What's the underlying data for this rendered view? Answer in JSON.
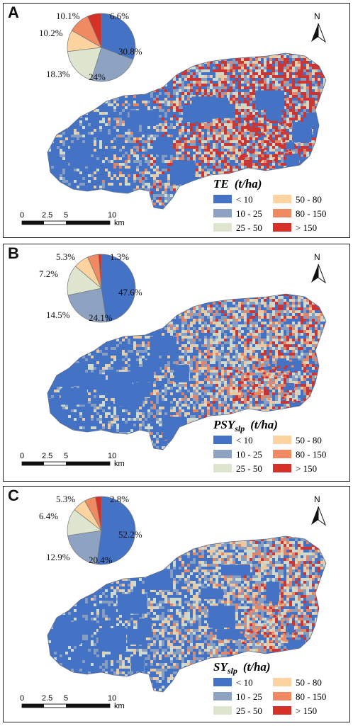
{
  "legend_colors": [
    "#4472c4",
    "#8ea3c2",
    "#dfe6cf",
    "#fdd39f",
    "#ef8a62",
    "#d73027"
  ],
  "legend_labels": [
    "< 10",
    "10 - 25",
    "25 - 50",
    "50 - 80",
    "80 - 150",
    "> 150"
  ],
  "scale_labels": [
    "0",
    "2.5",
    "5",
    "10",
    "km"
  ],
  "north_label": "N",
  "panels": [
    {
      "letter": "A",
      "title_main": "TE",
      "title_sub": "",
      "title_unit": "(t/ha)",
      "pie": [
        30.8,
        24,
        18.3,
        10.2,
        10.1,
        6.6
      ],
      "pie_labels": [
        "30.8%",
        "24%",
        "18.3%",
        "10.2%",
        "10.1%",
        "6.6%"
      ]
    },
    {
      "letter": "B",
      "title_main": "PSY",
      "title_sub": "slp",
      "title_unit": "(t/ha)",
      "pie": [
        47.6,
        24.1,
        14.5,
        7.2,
        5.3,
        1.3
      ],
      "pie_labels": [
        "47.6%",
        "24.1%",
        "14.5%",
        "7.2%",
        "5.3%",
        "1.3%"
      ]
    },
    {
      "letter": "C",
      "title_main": "SY",
      "title_sub": "slp",
      "title_unit": "(t/ha)",
      "pie": [
        52.2,
        20.4,
        12.9,
        6.4,
        5.3,
        2.8
      ],
      "pie_labels": [
        "52.2%",
        "20.4%",
        "12.9%",
        "6.4%",
        "5.3%",
        "2.8%"
      ]
    }
  ]
}
